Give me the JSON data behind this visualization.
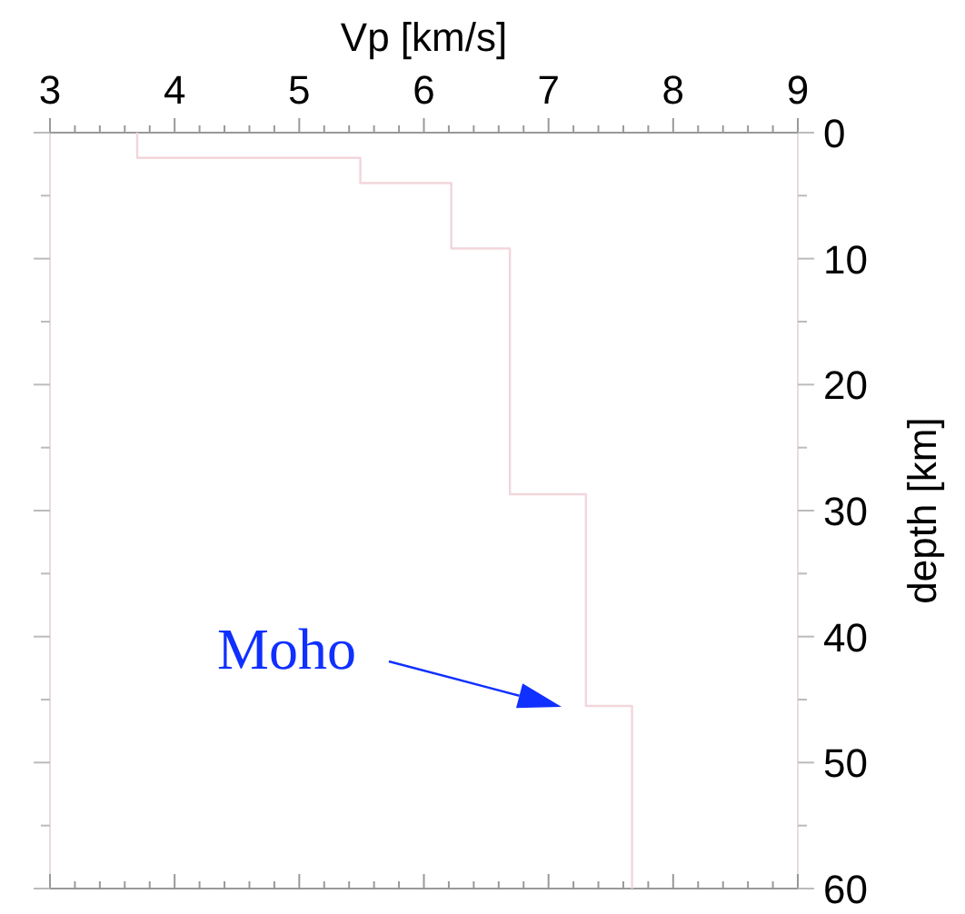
{
  "chart_data": {
    "type": "line",
    "xlabel": "Vp [km/s]",
    "ylabel": "depth [km]",
    "xlim": [
      3,
      9
    ],
    "ylim": [
      60,
      0
    ],
    "xticks": [
      3,
      {
        "value": 3.2,
        "label": null
      },
      {
        "value": 3.4,
        "label": null
      },
      {
        "value": 3.6,
        "label": null
      },
      {
        "value": 3.8,
        "label": null
      },
      4,
      {
        "value": 4.2,
        "label": null
      },
      {
        "value": 4.4,
        "label": null
      },
      {
        "value": 4.6,
        "label": null
      },
      {
        "value": 4.8,
        "label": null
      },
      5,
      {
        "value": 5.2,
        "label": null
      },
      {
        "value": 5.4,
        "label": null
      },
      {
        "value": 5.6,
        "label": null
      },
      {
        "value": 5.8,
        "label": null
      },
      6,
      {
        "value": 6.2,
        "label": null
      },
      {
        "value": 6.4,
        "label": null
      },
      {
        "value": 6.6,
        "label": null
      },
      {
        "value": 6.8,
        "label": null
      },
      7,
      {
        "value": 7.2,
        "label": null
      },
      {
        "value": 7.4,
        "label": null
      },
      {
        "value": 7.6,
        "label": null
      },
      {
        "value": 7.8,
        "label": null
      },
      8,
      {
        "value": 8.2,
        "label": null
      },
      {
        "value": 8.4,
        "label": null
      },
      {
        "value": 8.6,
        "label": null
      },
      {
        "value": 8.8,
        "label": null
      },
      9
    ],
    "yticks": [
      0,
      {
        "value": 5,
        "label": null
      },
      10,
      {
        "value": 15,
        "label": null
      },
      20,
      {
        "value": 25,
        "label": null
      },
      30,
      {
        "value": 35,
        "label": null
      },
      40,
      {
        "value": 45,
        "label": null
      },
      50,
      {
        "value": 55,
        "label": null
      },
      60
    ],
    "series": [
      {
        "color": "#f2d6dc",
        "x": [
          3.7,
          3.7,
          5.49,
          5.49,
          6.22,
          6.22,
          6.69,
          6.69,
          7.3,
          7.3,
          7.67,
          7.67
        ],
        "values": [
          0,
          2,
          2,
          4,
          4,
          9.2,
          9.2,
          28.7,
          28.7,
          45.5,
          45.5,
          60
        ]
      }
    ],
    "annotations": [
      "Moho"
    ],
    "line_style": "solid"
  }
}
